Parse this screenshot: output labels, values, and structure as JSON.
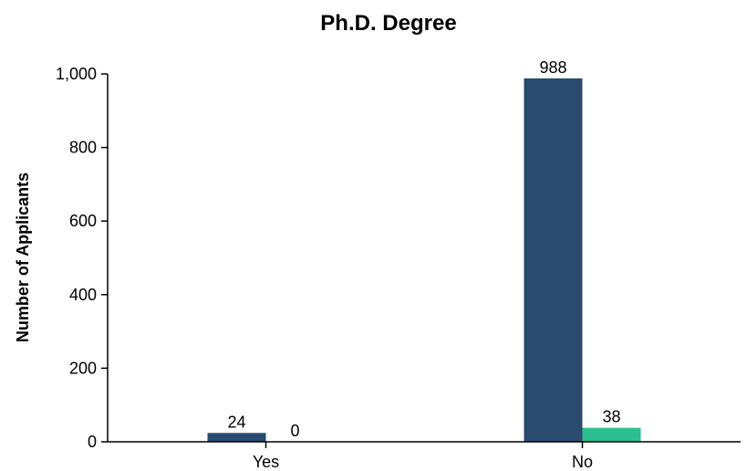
{
  "chart_data": {
    "type": "bar",
    "title": "Ph.D. Degree",
    "xlabel": "",
    "ylabel": "Number of Applicants",
    "categories": [
      "Yes",
      "No"
    ],
    "series": [
      {
        "values": [
          24,
          988
        ],
        "color": "#2a4a6e"
      },
      {
        "values": [
          0,
          38
        ],
        "color": "#2ebf91"
      }
    ],
    "ylim": [
      0,
      1000
    ],
    "yticks": [
      0,
      200,
      400,
      600,
      800,
      1000
    ],
    "ytick_labels": [
      "0",
      "200",
      "400",
      "600",
      "800",
      "1,000"
    ],
    "data_labels": [
      [
        "24",
        "988"
      ],
      [
        "0",
        "38"
      ]
    ],
    "grid": false,
    "legend": "none"
  }
}
